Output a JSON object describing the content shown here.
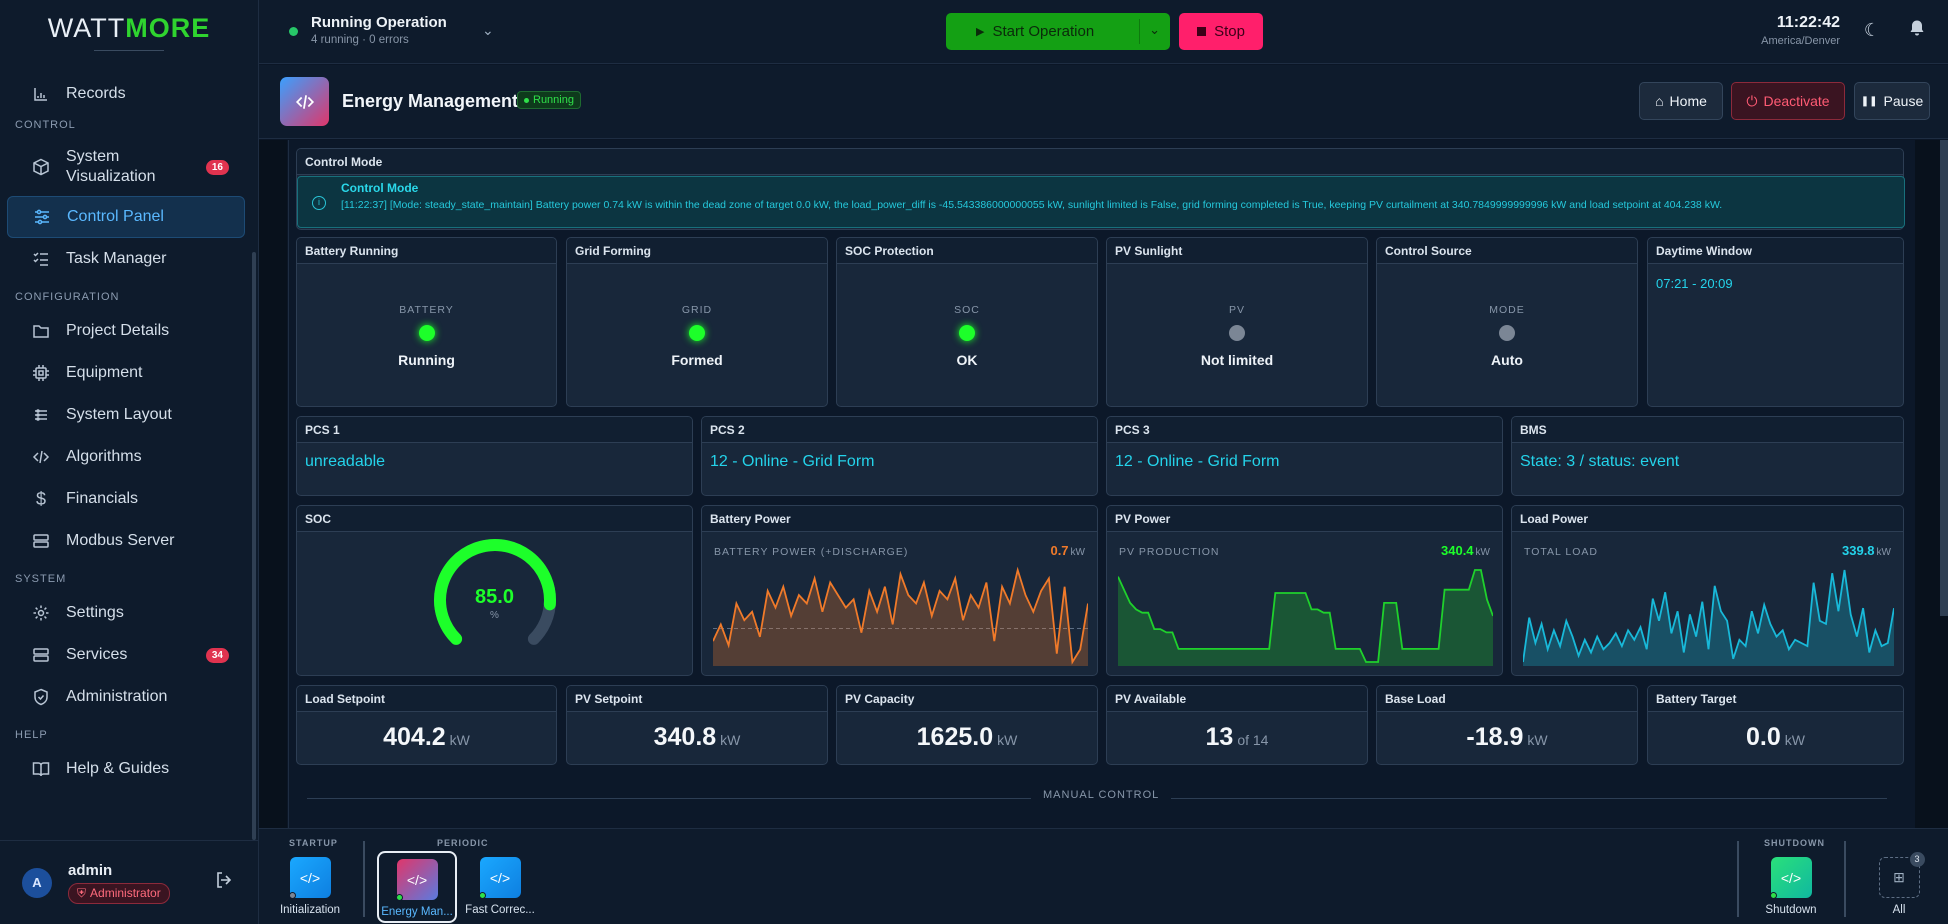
{
  "brand": {
    "part1": "WATT",
    "part2": "MORE"
  },
  "sidebar": {
    "sections": [
      {
        "label": "CONTROL"
      },
      {
        "label": "CONFIGURATION"
      },
      {
        "label": "SYSTEM"
      },
      {
        "label": "HELP"
      }
    ],
    "items": [
      {
        "label": "Records",
        "icon": "chart-icon"
      },
      {
        "label": "System Visualization",
        "icon": "cube-icon",
        "badge": "16"
      },
      {
        "label": "Control Panel",
        "icon": "sliders-icon",
        "active": true
      },
      {
        "label": "Task Manager",
        "icon": "checklist-icon"
      },
      {
        "label": "Project Details",
        "icon": "folder-icon"
      },
      {
        "label": "Equipment",
        "icon": "chip-icon"
      },
      {
        "label": "System Layout",
        "icon": "layout-icon"
      },
      {
        "label": "Algorithms",
        "icon": "code-icon"
      },
      {
        "label": "Financials",
        "icon": "dollar-icon"
      },
      {
        "label": "Modbus Server",
        "icon": "server-icon"
      },
      {
        "label": "Settings",
        "icon": "gear-icon"
      },
      {
        "label": "Services",
        "icon": "server-icon",
        "badge": "34"
      },
      {
        "label": "Administration",
        "icon": "shield-icon"
      },
      {
        "label": "Help & Guides",
        "icon": "book-icon"
      }
    ],
    "user": {
      "initial": "A",
      "name": "admin",
      "role": "Administrator"
    }
  },
  "topbar": {
    "status_title": "Running Operation",
    "status_sub": "4 running · 0 errors",
    "start_label": "Start Operation",
    "stop_label": "Stop",
    "time": "11:22:42",
    "timezone": "America/Denver"
  },
  "header": {
    "title": "Energy Management",
    "status": "Running",
    "home_label": "Home",
    "deactivate_label": "Deactivate",
    "pause_label": "Pause"
  },
  "control_mode": {
    "card_title": "Control Mode",
    "alert_title": "Control Mode",
    "message": "[11:22:37] [Mode: steady_state_maintain] Battery power 0.74 kW is within the dead zone of target 0.0 kW, the load_power_diff is -45.543386000000055 kW, sunlight limited is False, grid forming completed is True, keeping PV curtailment at 340.7849999999996 kW and load setpoint at 404.238 kW."
  },
  "status_cards": [
    {
      "title": "Battery Running",
      "label": "BATTERY",
      "value": "Running",
      "led": "on"
    },
    {
      "title": "Grid Forming",
      "label": "GRID",
      "value": "Formed",
      "led": "on"
    },
    {
      "title": "SOC Protection",
      "label": "SOC",
      "value": "OK",
      "led": "on"
    },
    {
      "title": "PV Sunlight",
      "label": "PV",
      "value": "Not limited",
      "led": "off"
    },
    {
      "title": "Control Source",
      "label": "MODE",
      "value": "Auto",
      "led": "off"
    }
  ],
  "daytime": {
    "title": "Daytime Window",
    "value": "07:21 - 20:09"
  },
  "devices": [
    {
      "title": "PCS 1",
      "value": "unreadable"
    },
    {
      "title": "PCS 2",
      "value": "12 - Online - Grid Form"
    },
    {
      "title": "PCS 3",
      "value": "12 - Online - Grid Form"
    },
    {
      "title": "BMS",
      "value": "State: 3 / status: event"
    }
  ],
  "soc": {
    "title": "SOC",
    "value": "85.0",
    "unit": "%",
    "fraction": 0.85
  },
  "charts": [
    {
      "title": "Battery Power",
      "label": "BATTERY POWER (+DISCHARGE)",
      "value": "0.7",
      "unit": "kW",
      "color": "#f07a2a"
    },
    {
      "title": "PV Power",
      "label": "PV PRODUCTION",
      "value": "340.4",
      "unit": "kW",
      "color": "#1fd12c"
    },
    {
      "title": "Load Power",
      "label": "TOTAL LOAD",
      "value": "339.8",
      "unit": "kW",
      "color": "#18b9d9"
    }
  ],
  "chart_data": [
    {
      "type": "area",
      "title": "BATTERY POWER (+DISCHARGE)",
      "series": [
        {
          "values": [
            -3,
            1,
            -4,
            6,
            2,
            4,
            -2,
            9,
            5,
            10,
            3,
            8,
            6,
            12,
            4,
            11,
            8,
            5,
            7,
            -1,
            9,
            4,
            10,
            1,
            13,
            8,
            6,
            11,
            3,
            9,
            7,
            12,
            2,
            8,
            5,
            11,
            -3,
            10,
            6,
            14,
            8,
            4,
            9,
            12,
            -6,
            10,
            -8,
            -5,
            6
          ]
        }
      ],
      "ylabel": "kW"
    },
    {
      "type": "area",
      "title": "PV PRODUCTION",
      "series": [
        {
          "values": [
            340,
            300,
            260,
            240,
            230,
            230,
            180,
            180,
            170,
            170,
            120,
            120,
            120,
            120,
            120,
            120,
            120,
            120,
            120,
            120,
            120,
            120,
            120,
            120,
            120,
            120,
            290,
            290,
            290,
            290,
            290,
            290,
            240,
            240,
            230,
            230,
            120,
            120,
            120,
            120,
            120,
            80,
            80,
            80,
            260,
            260,
            260,
            120,
            120,
            120,
            120,
            120,
            120,
            120,
            300,
            300,
            300,
            300,
            300,
            360,
            360,
            270,
            220
          ]
        }
      ],
      "ylabel": "kW"
    },
    {
      "type": "area",
      "title": "TOTAL LOAD",
      "series": [
        {
          "values": [
            100,
            240,
            160,
            220,
            140,
            200,
            150,
            230,
            180,
            120,
            170,
            130,
            180,
            140,
            160,
            190,
            150,
            200,
            170,
            210,
            140,
            300,
            230,
            320,
            190,
            260,
            130,
            250,
            180,
            290,
            140,
            340,
            260,
            230,
            110,
            170,
            150,
            260,
            190,
            280,
            220,
            180,
            200,
            140,
            170,
            160,
            150,
            350,
            230,
            220,
            380,
            260,
            390,
            250,
            180,
            270,
            130,
            200,
            150,
            160,
            270
          ]
        }
      ],
      "ylabel": "kW"
    }
  ],
  "metrics": [
    {
      "title": "Load Setpoint",
      "value": "404.2",
      "unit": "kW"
    },
    {
      "title": "PV Setpoint",
      "value": "340.8",
      "unit": "kW"
    },
    {
      "title": "PV Capacity",
      "value": "1625.0",
      "unit": "kW"
    },
    {
      "title": "PV Available",
      "value": "13",
      "unit": "of 14"
    },
    {
      "title": "Base Load",
      "value": "-18.9",
      "unit": "kW"
    },
    {
      "title": "Battery Target",
      "value": "0.0",
      "unit": "kW"
    }
  ],
  "manual_label": "MANUAL CONTROL",
  "dock": {
    "startup_label": "STARTUP",
    "periodic_label": "PERIODIC",
    "shutdown_label": "SHUTDOWN",
    "items": [
      {
        "name": "Initialization"
      },
      {
        "name": "Energy Man..."
      },
      {
        "name": "Fast Correc..."
      },
      {
        "name": "Shutdown"
      }
    ],
    "all_label": "All",
    "all_count": "3"
  }
}
